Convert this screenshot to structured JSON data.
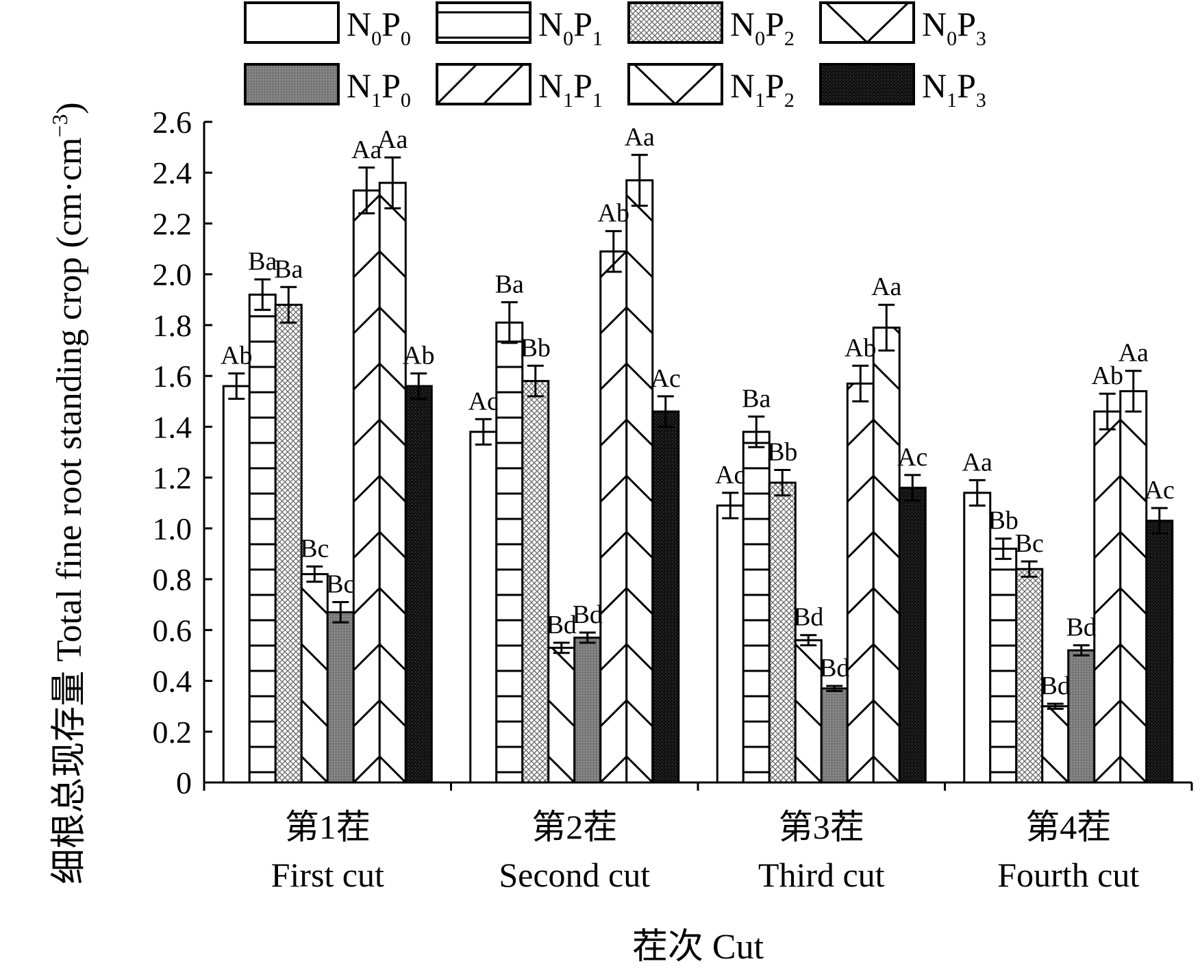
{
  "chart_data": {
    "type": "bar",
    "ylabel": "细根总现存量 Total fine root standing crop (cm·cm",
    "ylabel_sup": "−3",
    "ylabel_close": ")",
    "xlabel": "茬次 Cut",
    "ylim": [
      0,
      2.6
    ],
    "yticks": [
      "0",
      "0.2",
      "0.4",
      "0.6",
      "0.8",
      "1.0",
      "1.2",
      "1.4",
      "1.6",
      "1.8",
      "2.0",
      "2.2",
      "2.4",
      "2.6"
    ],
    "categories": [
      {
        "zh": "第1茬",
        "en": "First cut"
      },
      {
        "zh": "第2茬",
        "en": "Second cut"
      },
      {
        "zh": "第3茬",
        "en": "Third cut"
      },
      {
        "zh": "第4茬",
        "en": "Fourth cut"
      }
    ],
    "legend_position": "top",
    "series": [
      {
        "name": "N0P0",
        "n": "0",
        "p": "0",
        "pattern": "white",
        "values": [
          1.56,
          1.38,
          1.09,
          1.14
        ],
        "errors": [
          0.05,
          0.05,
          0.05,
          0.05
        ],
        "labels": [
          "Ab",
          "Ac",
          "Ac",
          "Aa"
        ]
      },
      {
        "name": "N0P1",
        "n": "0",
        "p": "1",
        "pattern": "horizontal",
        "values": [
          1.92,
          1.81,
          1.38,
          0.92
        ],
        "errors": [
          0.06,
          0.08,
          0.06,
          0.04
        ],
        "labels": [
          "Ba",
          "Ba",
          "Ba",
          "Bb"
        ]
      },
      {
        "name": "N0P2",
        "n": "0",
        "p": "2",
        "pattern": "crosshatch",
        "values": [
          1.88,
          1.58,
          1.18,
          0.84
        ],
        "errors": [
          0.07,
          0.06,
          0.05,
          0.03
        ],
        "labels": [
          "Ba",
          "Bb",
          "Bb",
          "Bc"
        ]
      },
      {
        "name": "N0P3",
        "n": "0",
        "p": "3",
        "pattern": "backdiag",
        "values": [
          0.82,
          0.53,
          0.56,
          0.3
        ],
        "errors": [
          0.03,
          0.02,
          0.02,
          0.01
        ],
        "labels": [
          "Bc",
          "Bd",
          "Bd",
          "Bd"
        ]
      },
      {
        "name": "N1P0",
        "n": "1",
        "p": "0",
        "pattern": "gray",
        "values": [
          0.67,
          0.57,
          0.37,
          0.52
        ],
        "errors": [
          0.04,
          0.02,
          0.01,
          0.02
        ],
        "labels": [
          "Bc",
          "Bd",
          "Bd",
          "Bd"
        ]
      },
      {
        "name": "N1P1",
        "n": "1",
        "p": "1",
        "pattern": "fwddiag",
        "values": [
          2.33,
          2.09,
          1.57,
          1.46
        ],
        "errors": [
          0.09,
          0.08,
          0.07,
          0.07
        ],
        "labels": [
          "Aa",
          "Ab",
          "Ab",
          "Ab"
        ]
      },
      {
        "name": "N1P2",
        "n": "1",
        "p": "2",
        "pattern": "backdiag",
        "values": [
          2.36,
          2.37,
          1.79,
          1.54
        ],
        "errors": [
          0.1,
          0.1,
          0.09,
          0.08
        ],
        "labels": [
          "Aa",
          "Aa",
          "Aa",
          "Aa"
        ]
      },
      {
        "name": "N1P3",
        "n": "1",
        "p": "3",
        "pattern": "black",
        "values": [
          1.56,
          1.46,
          1.16,
          1.03
        ],
        "errors": [
          0.05,
          0.06,
          0.05,
          0.05
        ],
        "labels": [
          "Ab",
          "Ac",
          "Ac",
          "Ac"
        ]
      }
    ],
    "grid": false
  }
}
